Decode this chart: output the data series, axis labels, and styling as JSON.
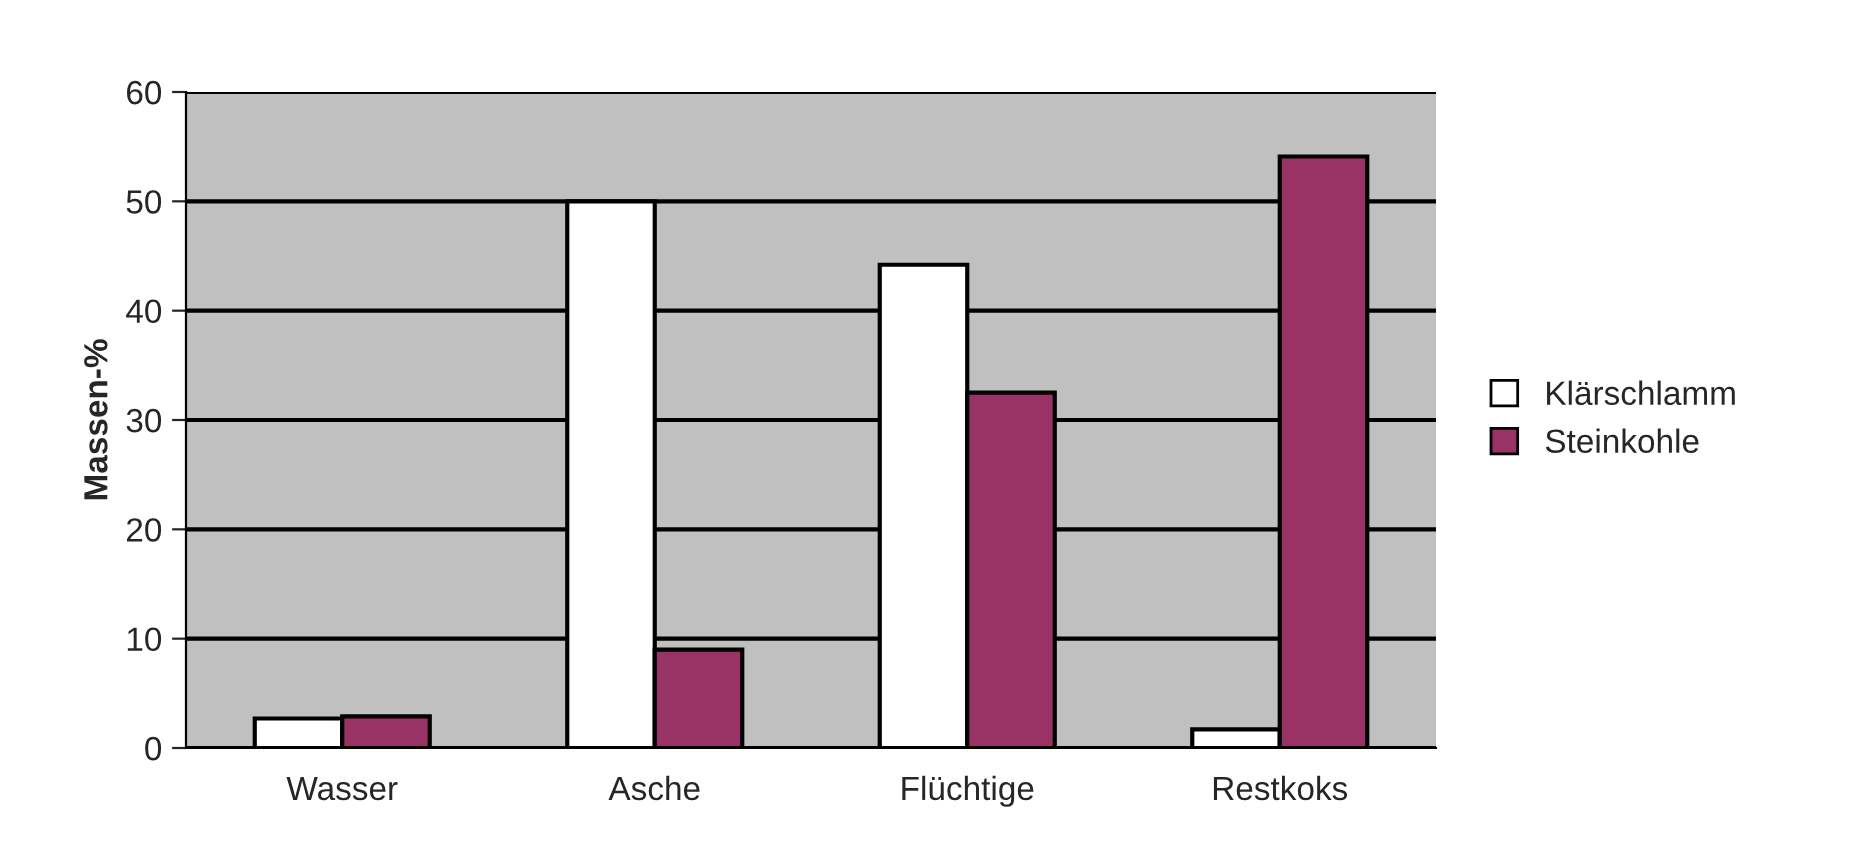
{
  "chart_data": {
    "type": "bar",
    "ylabel": "Massen-%",
    "categories": [
      "Wasser",
      "Asche",
      "Flüchtige",
      "Restkoks"
    ],
    "series": [
      {
        "name": "Klärschlamm",
        "color": "#ffffff",
        "values": [
          2.7,
          50,
          44.2,
          1.7
        ]
      },
      {
        "name": "Steinkohle",
        "color": "#993366",
        "values": [
          2.9,
          9,
          32.5,
          54.1
        ]
      }
    ],
    "ylim": [
      0,
      60
    ],
    "yticks": [
      0,
      10,
      20,
      30,
      40,
      50,
      60
    ],
    "grid": "y",
    "legend": "right"
  }
}
